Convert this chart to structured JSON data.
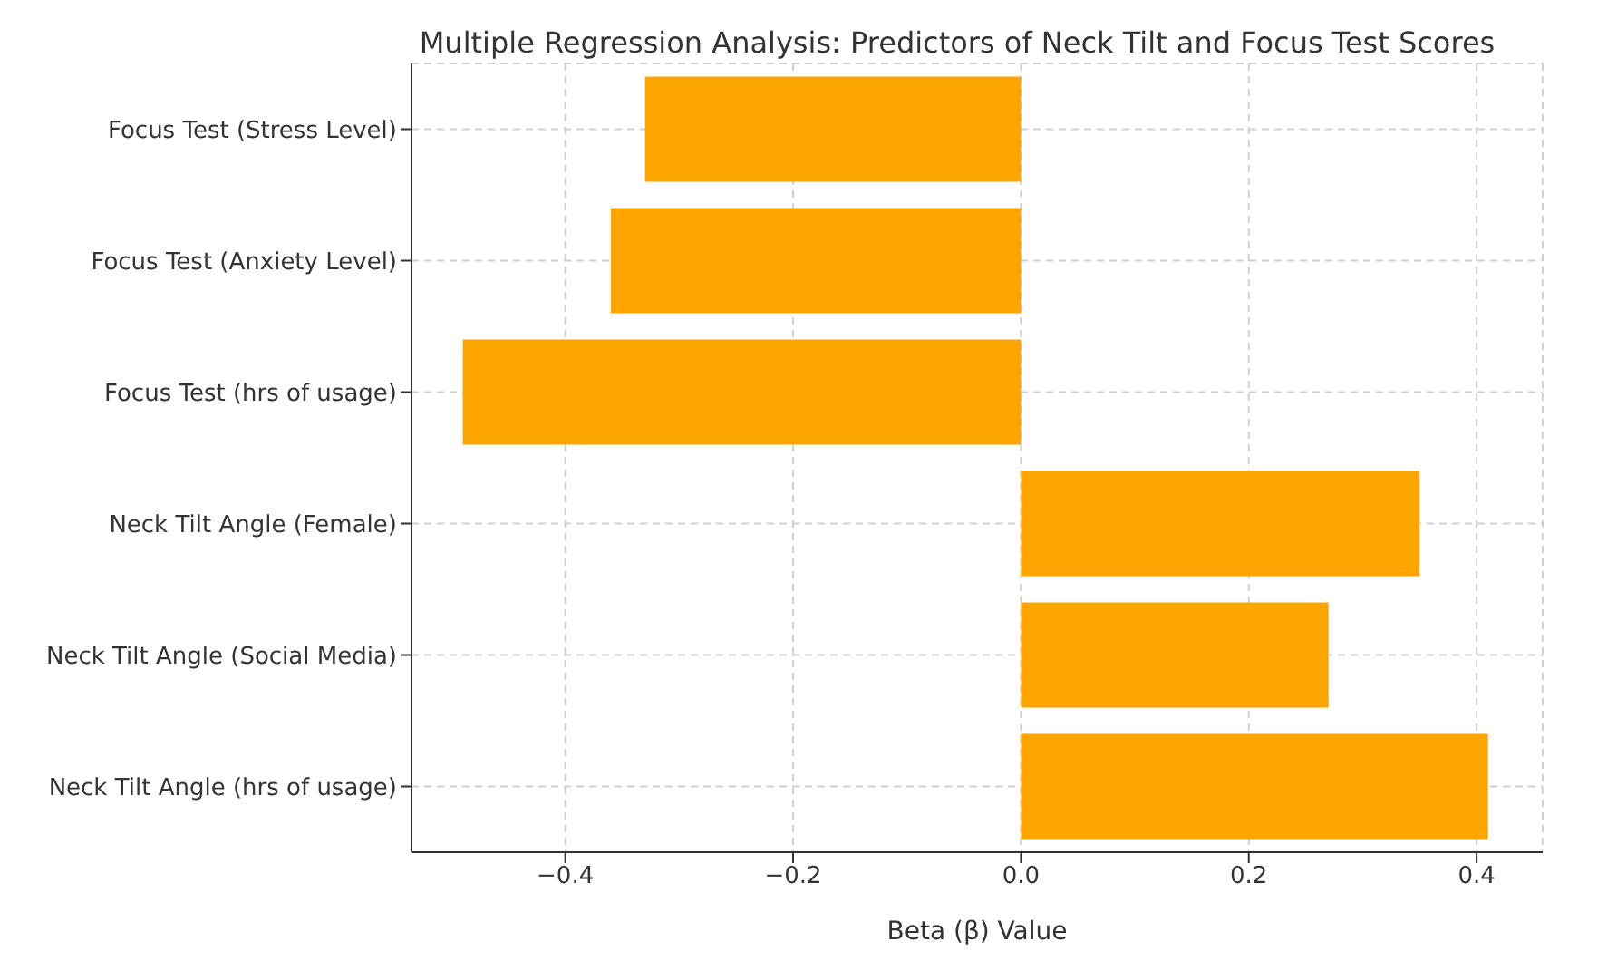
{
  "chart_data": {
    "type": "bar",
    "orientation": "horizontal",
    "title": "Multiple Regression Analysis: Predictors of Neck Tilt and Focus Test Scores",
    "xlabel": "Beta (β) Value",
    "categories": [
      "Focus Test (Stress Level)",
      "Focus Test (Anxiety Level)",
      "Focus Test (hrs of usage)",
      "Neck Tilt Angle (Female)",
      "Neck Tilt Angle (Social Media)",
      "Neck Tilt Angle (hrs of usage)"
    ],
    "values": [
      -0.33,
      -0.36,
      -0.49,
      0.35,
      0.27,
      0.41
    ],
    "color": "#ffa500",
    "xlim": [
      -0.535,
      0.458
    ],
    "xticks": [
      {
        "value": -0.4,
        "label": "−0.4"
      },
      {
        "value": -0.2,
        "label": "−0.2"
      },
      {
        "value": 0,
        "label": "0.0"
      },
      {
        "value": 0.2,
        "label": "0.2"
      },
      {
        "value": 0.4,
        "label": "0.4"
      }
    ],
    "grid": true
  }
}
